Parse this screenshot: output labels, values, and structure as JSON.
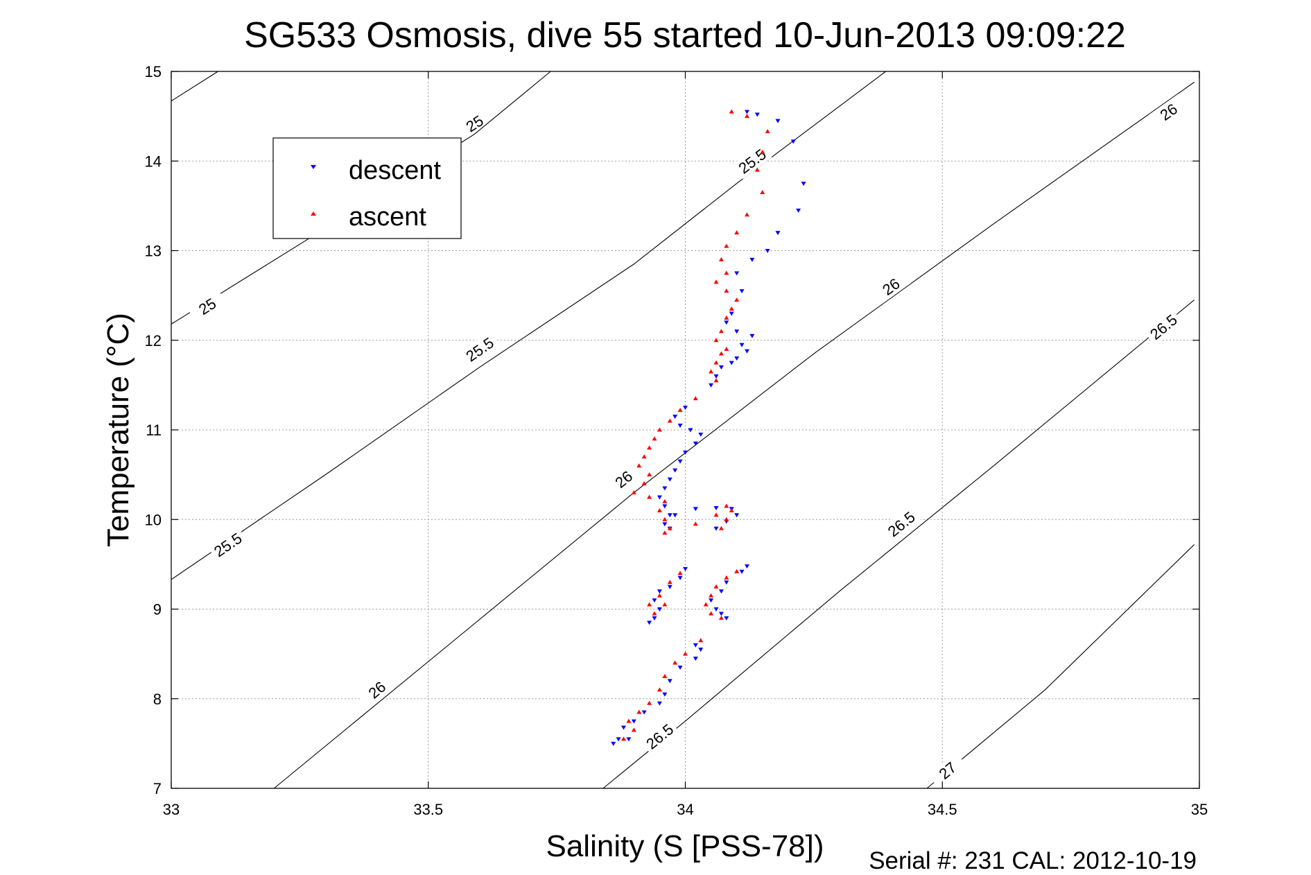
{
  "chart_data": {
    "type": "scatter",
    "title": "SG533 Osmosis, dive 55 started 10-Jun-2013 09:09:22",
    "xlabel": "Salinity (S [PSS-78])",
    "ylabel": "Temperature (°C)",
    "xlim": [
      33,
      35
    ],
    "ylim": [
      7,
      15
    ],
    "x_ticks": [
      "33",
      "33.5",
      "34",
      "34.5",
      "35"
    ],
    "y_ticks": [
      "7",
      "8",
      "9",
      "10",
      "11",
      "12",
      "13",
      "14",
      "15"
    ],
    "grid": true,
    "legend": {
      "placement": "upper-left",
      "entries": [
        "descent",
        "ascent"
      ]
    },
    "footer": "Serial #: 231  CAL: 2012-10-19",
    "colors": {
      "descent": "#0000ff",
      "ascent": "#ff0000",
      "contour": "#000000"
    },
    "density_contours": [
      {
        "label": "25",
        "points": [
          [
            33.0,
            14.67
          ],
          [
            33.091,
            15.0
          ]
        ],
        "labels_at": [
          [
            33.59,
            14.42
          ]
        ]
      },
      {
        "label": "25",
        "points": [
          [
            33.0,
            12.18
          ],
          [
            33.3,
            13.25
          ],
          [
            33.59,
            14.3
          ],
          [
            33.738,
            15.0
          ]
        ],
        "labels_at": [
          [
            33.07,
            12.38
          ]
        ]
      },
      {
        "label": "25.5",
        "points": [
          [
            33.0,
            9.33
          ],
          [
            33.3,
            10.5
          ],
          [
            33.6,
            11.7
          ],
          [
            33.9,
            12.85
          ],
          [
            34.1,
            13.75
          ],
          [
            34.39,
            15.0
          ]
        ],
        "labels_at": [
          [
            33.11,
            9.72
          ],
          [
            33.6,
            11.9
          ],
          [
            34.13,
            14.0
          ]
        ]
      },
      {
        "label": "26",
        "points": [
          [
            33.2,
            7.0
          ],
          [
            33.55,
            8.65
          ],
          [
            33.9,
            10.3
          ],
          [
            34.25,
            11.85
          ],
          [
            34.6,
            13.3
          ],
          [
            34.99,
            14.88
          ]
        ],
        "labels_at": [
          [
            33.4,
            8.1
          ],
          [
            33.88,
            10.45
          ],
          [
            34.4,
            12.6
          ],
          [
            34.94,
            14.55
          ]
        ]
      },
      {
        "label": "26.5",
        "points": [
          [
            33.84,
            7.0
          ],
          [
            34.0,
            7.75
          ],
          [
            34.3,
            9.2
          ],
          [
            34.6,
            10.6
          ],
          [
            34.99,
            12.45
          ]
        ],
        "labels_at": [
          [
            33.95,
            7.58
          ],
          [
            34.42,
            9.95
          ],
          [
            34.93,
            12.15
          ]
        ]
      },
      {
        "label": "27",
        "points": [
          [
            34.47,
            7.0
          ],
          [
            34.7,
            8.1
          ],
          [
            34.99,
            9.72
          ]
        ],
        "labels_at": [
          [
            34.51,
            7.2
          ]
        ]
      }
    ],
    "series": [
      {
        "name": "descent",
        "marker": "down-triangle",
        "points": [
          [
            34.12,
            14.55
          ],
          [
            34.14,
            14.52
          ],
          [
            34.18,
            14.45
          ],
          [
            34.21,
            14.22
          ],
          [
            34.23,
            13.75
          ],
          [
            34.22,
            13.45
          ],
          [
            34.18,
            13.2
          ],
          [
            34.16,
            13.0
          ],
          [
            34.13,
            12.9
          ],
          [
            34.1,
            12.75
          ],
          [
            34.11,
            12.55
          ],
          [
            34.09,
            12.3
          ],
          [
            34.08,
            12.2
          ],
          [
            34.1,
            12.1
          ],
          [
            34.13,
            12.05
          ],
          [
            34.11,
            11.95
          ],
          [
            34.12,
            11.88
          ],
          [
            34.1,
            11.8
          ],
          [
            34.09,
            11.75
          ],
          [
            34.07,
            11.7
          ],
          [
            34.06,
            11.6
          ],
          [
            34.05,
            11.5
          ],
          [
            34.0,
            11.25
          ],
          [
            33.98,
            11.15
          ],
          [
            33.99,
            11.05
          ],
          [
            34.01,
            11.0
          ],
          [
            34.03,
            10.95
          ],
          [
            34.02,
            10.85
          ],
          [
            34.0,
            10.75
          ],
          [
            33.99,
            10.65
          ],
          [
            33.98,
            10.55
          ],
          [
            33.97,
            10.45
          ],
          [
            33.96,
            10.35
          ],
          [
            33.95,
            10.25
          ],
          [
            33.96,
            10.15
          ],
          [
            33.97,
            10.05
          ],
          [
            33.96,
            9.95
          ],
          [
            33.97,
            9.9
          ],
          [
            33.98,
            10.05
          ],
          [
            34.02,
            10.12
          ],
          [
            34.06,
            10.13
          ],
          [
            34.09,
            10.12
          ],
          [
            34.1,
            10.05
          ],
          [
            34.08,
            9.98
          ],
          [
            34.06,
            9.9
          ],
          [
            34.12,
            9.48
          ],
          [
            34.11,
            9.42
          ],
          [
            34.08,
            9.3
          ],
          [
            34.07,
            9.2
          ],
          [
            34.05,
            9.1
          ],
          [
            34.06,
            9.0
          ],
          [
            34.07,
            8.95
          ],
          [
            34.08,
            8.9
          ],
          [
            34.0,
            9.45
          ],
          [
            33.99,
            9.35
          ],
          [
            33.97,
            9.25
          ],
          [
            33.95,
            9.2
          ],
          [
            33.94,
            9.1
          ],
          [
            33.95,
            9.0
          ],
          [
            33.94,
            8.9
          ],
          [
            33.93,
            8.85
          ],
          [
            34.02,
            8.6
          ],
          [
            34.03,
            8.55
          ],
          [
            34.02,
            8.45
          ],
          [
            33.99,
            8.35
          ],
          [
            33.97,
            8.2
          ],
          [
            33.96,
            8.05
          ],
          [
            33.95,
            7.95
          ],
          [
            33.92,
            7.85
          ],
          [
            33.9,
            7.75
          ],
          [
            33.88,
            7.68
          ],
          [
            33.87,
            7.55
          ],
          [
            33.86,
            7.5
          ],
          [
            33.89,
            7.55
          ]
        ]
      },
      {
        "name": "ascent",
        "marker": "up-triangle",
        "points": [
          [
            34.09,
            14.55
          ],
          [
            34.12,
            14.5
          ],
          [
            34.16,
            14.33
          ],
          [
            34.15,
            14.1
          ],
          [
            34.14,
            13.9
          ],
          [
            34.15,
            13.65
          ],
          [
            34.12,
            13.4
          ],
          [
            34.1,
            13.2
          ],
          [
            34.08,
            13.05
          ],
          [
            34.07,
            12.9
          ],
          [
            34.08,
            12.75
          ],
          [
            34.06,
            12.65
          ],
          [
            34.08,
            12.55
          ],
          [
            34.1,
            12.45
          ],
          [
            34.09,
            12.35
          ],
          [
            34.08,
            12.25
          ],
          [
            34.07,
            12.1
          ],
          [
            34.06,
            12.0
          ],
          [
            34.08,
            11.9
          ],
          [
            34.07,
            11.85
          ],
          [
            34.06,
            11.75
          ],
          [
            34.05,
            11.65
          ],
          [
            34.06,
            11.55
          ],
          [
            34.02,
            11.35
          ],
          [
            33.99,
            11.22
          ],
          [
            33.97,
            11.1
          ],
          [
            33.95,
            11.0
          ],
          [
            33.94,
            10.9
          ],
          [
            33.93,
            10.8
          ],
          [
            33.92,
            10.7
          ],
          [
            33.91,
            10.6
          ],
          [
            33.93,
            10.5
          ],
          [
            33.92,
            10.4
          ],
          [
            33.9,
            10.3
          ],
          [
            33.93,
            10.25
          ],
          [
            33.96,
            10.2
          ],
          [
            33.95,
            10.1
          ],
          [
            33.96,
            10.0
          ],
          [
            33.97,
            9.9
          ],
          [
            33.96,
            9.85
          ],
          [
            34.02,
            9.95
          ],
          [
            34.06,
            10.05
          ],
          [
            34.08,
            10.15
          ],
          [
            34.09,
            10.1
          ],
          [
            34.08,
            10.0
          ],
          [
            34.07,
            9.9
          ],
          [
            34.1,
            9.42
          ],
          [
            34.08,
            9.35
          ],
          [
            34.06,
            9.25
          ],
          [
            34.05,
            9.15
          ],
          [
            34.04,
            9.05
          ],
          [
            34.05,
            8.95
          ],
          [
            34.07,
            8.9
          ],
          [
            33.99,
            9.4
          ],
          [
            33.97,
            9.3
          ],
          [
            33.95,
            9.15
          ],
          [
            33.93,
            9.05
          ],
          [
            33.94,
            8.95
          ],
          [
            33.96,
            9.05
          ],
          [
            34.03,
            8.65
          ],
          [
            34.0,
            8.5
          ],
          [
            33.98,
            8.4
          ],
          [
            33.96,
            8.25
          ],
          [
            33.95,
            8.1
          ],
          [
            33.93,
            7.95
          ],
          [
            33.91,
            7.85
          ],
          [
            33.89,
            7.75
          ],
          [
            33.9,
            7.65
          ],
          [
            33.88,
            7.55
          ]
        ]
      }
    ]
  }
}
